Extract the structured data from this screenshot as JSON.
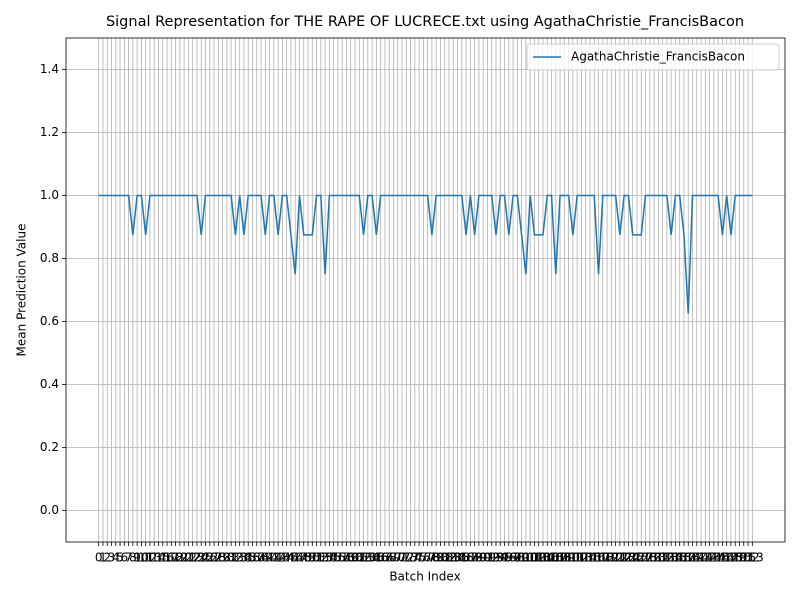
{
  "chart_data": {
    "type": "line",
    "title": "Signal Representation for THE RAPE OF LUCRECE.txt using AgathaChristie_FrancisBacon",
    "xlabel": "Batch Index",
    "ylabel": "Mean Prediction Value",
    "x": [
      0,
      1,
      2,
      3,
      4,
      5,
      6,
      7,
      8,
      9,
      10,
      11,
      12,
      13,
      14,
      15,
      16,
      17,
      18,
      19,
      20,
      21,
      22,
      23,
      24,
      25,
      26,
      27,
      28,
      29,
      30,
      31,
      32,
      33,
      34,
      35,
      36,
      37,
      38,
      39,
      40,
      41,
      42,
      43,
      44,
      45,
      46,
      47,
      48,
      49,
      50,
      51,
      52,
      53,
      54,
      55,
      56,
      57,
      58,
      59,
      60,
      61,
      62,
      63,
      64,
      65,
      66,
      67,
      68,
      69,
      70,
      71,
      72,
      73,
      74,
      75,
      76,
      77,
      78,
      79,
      80,
      81,
      82,
      83,
      84,
      85,
      86,
      87,
      88,
      89,
      90,
      91,
      92,
      93,
      94,
      95,
      96,
      97,
      98,
      99,
      100,
      101,
      102,
      103,
      104,
      105,
      106,
      107,
      108,
      109,
      110,
      111,
      112,
      113,
      114,
      115,
      116,
      117,
      118,
      119,
      120,
      121,
      122,
      123,
      124,
      125,
      126,
      127,
      128,
      129,
      130,
      131,
      132,
      133,
      134,
      135,
      136,
      137,
      138,
      139,
      140,
      141,
      142,
      143,
      144,
      145,
      146,
      147,
      148,
      149,
      150,
      151,
      152,
      153
    ],
    "series": [
      {
        "name": "AgathaChristie_FrancisBacon",
        "color": "#1f77b4",
        "values": [
          1,
          1,
          1,
          1,
          1,
          1,
          1,
          1,
          0.875,
          1,
          1,
          0.875,
          1,
          1,
          1,
          1,
          1,
          1,
          1,
          1,
          1,
          1,
          1,
          1,
          0.875,
          1,
          1,
          1,
          1,
          1,
          1,
          1,
          0.875,
          1,
          0.875,
          1,
          1,
          1,
          1,
          0.875,
          1,
          1,
          0.875,
          1,
          1,
          0.875,
          0.75,
          1,
          0.875,
          0.875,
          0.875,
          1,
          1,
          0.75,
          1,
          1,
          1,
          1,
          1,
          1,
          1,
          1,
          0.875,
          1,
          1,
          0.875,
          1,
          1,
          1,
          1,
          1,
          1,
          1,
          1,
          1,
          1,
          1,
          1,
          0.875,
          1,
          1,
          1,
          1,
          1,
          1,
          1,
          0.875,
          1,
          0.875,
          1,
          1,
          1,
          1,
          0.875,
          1,
          1,
          0.875,
          1,
          1,
          0.875,
          0.75,
          1,
          0.875,
          0.875,
          0.875,
          1,
          1,
          0.75,
          1,
          1,
          1,
          0.875,
          1,
          1,
          1,
          1,
          1,
          0.75,
          1,
          1,
          1,
          1,
          0.875,
          1,
          1,
          0.875,
          0.875,
          0.875,
          1,
          1,
          1,
          1,
          1,
          1,
          0.875,
          1,
          1,
          0.875,
          0.625,
          1,
          1,
          1,
          1,
          1,
          1,
          1,
          0.875,
          1,
          0.875,
          1,
          1,
          1,
          1,
          1
        ]
      }
    ],
    "xlim": [
      -7.65,
      160.65
    ],
    "xticks": [
      0,
      1,
      2,
      3,
      4,
      5,
      6,
      7,
      8,
      9,
      10,
      11,
      12,
      13,
      14,
      15,
      16,
      17,
      18,
      19,
      20,
      21,
      22,
      23,
      24,
      25,
      26,
      27,
      28,
      29,
      30,
      31,
      32,
      33,
      34,
      35,
      36,
      37,
      38,
      39,
      40,
      41,
      42,
      43,
      44,
      45,
      46,
      47,
      48,
      49,
      50,
      51,
      52,
      53,
      54,
      55,
      56,
      57,
      58,
      59,
      60,
      61,
      62,
      63,
      64,
      65,
      66,
      67,
      68,
      69,
      70,
      71,
      72,
      73,
      74,
      75,
      76,
      77,
      78,
      79,
      80,
      81,
      82,
      83,
      84,
      85,
      86,
      87,
      88,
      89,
      90,
      91,
      92,
      93,
      94,
      95,
      96,
      97,
      98,
      99,
      100,
      101,
      102,
      103,
      104,
      105,
      106,
      107,
      108,
      109,
      110,
      111,
      112,
      113,
      114,
      115,
      116,
      117,
      118,
      119,
      120,
      121,
      122,
      123,
      124,
      125,
      126,
      127,
      128,
      129,
      130,
      131,
      132,
      133,
      134,
      135,
      136,
      137,
      138,
      139,
      140,
      141,
      142,
      143,
      144,
      145,
      146,
      147,
      148,
      149,
      150,
      151,
      152,
      153
    ],
    "ylim": [
      -0.1,
      1.5
    ],
    "yticks": [
      {
        "value": 0,
        "label": "0.0"
      },
      {
        "value": 0.2,
        "label": "0.2"
      },
      {
        "value": 0.4,
        "label": "0.4"
      },
      {
        "value": 0.6,
        "label": "0.6"
      },
      {
        "value": 0.8,
        "label": "0.8"
      },
      {
        "value": 1,
        "label": "1.0"
      },
      {
        "value": 1.2,
        "label": "1.2"
      },
      {
        "value": 1.4,
        "label": "1.4"
      }
    ],
    "grid": true,
    "legend": "upper right"
  }
}
